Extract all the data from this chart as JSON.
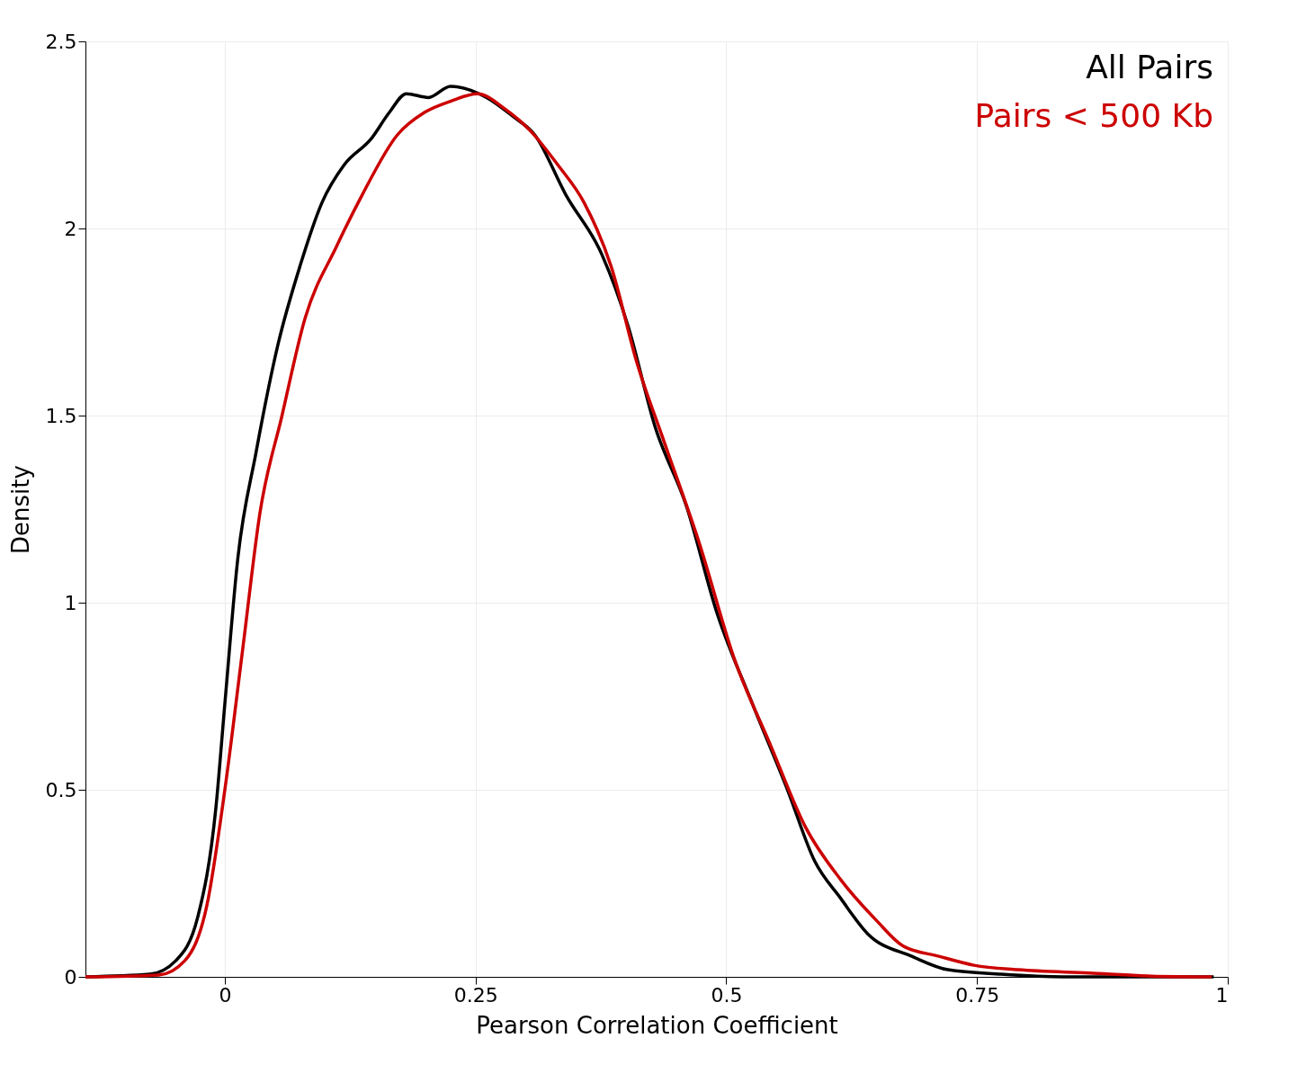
{
  "chart_data": {
    "type": "line",
    "xlabel": "Pearson Correlation Coefficient",
    "ylabel": "Density",
    "xlim": [
      -0.139,
      1
    ],
    "xticks": [
      0,
      0.25,
      0.5,
      0.75,
      1
    ],
    "ylim": [
      0,
      2.5
    ],
    "yticks": [
      0,
      0.5,
      1,
      1.5,
      2,
      2.5
    ],
    "grid": true,
    "legend": "top right",
    "line_style": "solid",
    "series": [
      {
        "name": "All Pairs",
        "color": "#000000",
        "x": [
          -0.139,
          -0.075,
          -0.049,
          -0.027,
          -0.009,
          0,
          0.013,
          0.031,
          0.053,
          0.075,
          0.097,
          0.119,
          0.146,
          0.164,
          0.181,
          0.203,
          0.225,
          0.261,
          0.287,
          0.309,
          0.34,
          0.376,
          0.402,
          0.429,
          0.46,
          0.491,
          0.526,
          0.561,
          0.588,
          0.614,
          0.641,
          0.685,
          0.721,
          0.774,
          0.836,
          0.986
        ],
        "values": [
          0,
          0.007,
          0.043,
          0.16,
          0.45,
          0.73,
          1.12,
          1.4,
          1.69,
          1.9,
          2.07,
          2.17,
          2.24,
          2.31,
          2.36,
          2.35,
          2.38,
          2.35,
          2.3,
          2.25,
          2.09,
          1.93,
          1.74,
          1.47,
          1.26,
          0.97,
          0.73,
          0.5,
          0.31,
          0.21,
          0.115,
          0.055,
          0.019,
          0.007,
          0,
          0
        ]
      },
      {
        "name": "Pairs < 500 Kb",
        "color": "#cc0000",
        "x": [
          -0.139,
          -0.066,
          -0.04,
          -0.018,
          0,
          0.018,
          0.035,
          0.057,
          0.08,
          0.111,
          0.137,
          0.172,
          0.199,
          0.225,
          0.252,
          0.279,
          0.305,
          0.332,
          0.358,
          0.385,
          0.411,
          0.438,
          0.473,
          0.508,
          0.544,
          0.579,
          0.614,
          0.65,
          0.676,
          0.712,
          0.747,
          0.791,
          0.862,
          0.924,
          0.984
        ],
        "values": [
          0,
          0.005,
          0.043,
          0.19,
          0.5,
          0.88,
          1.24,
          1.5,
          1.76,
          1.95,
          2.09,
          2.25,
          2.31,
          2.34,
          2.36,
          2.32,
          2.26,
          2.17,
          2.07,
          1.9,
          1.64,
          1.43,
          1.16,
          0.85,
          0.62,
          0.4,
          0.26,
          0.15,
          0.083,
          0.055,
          0.031,
          0.019,
          0.01,
          0.002,
          0
        ]
      }
    ]
  }
}
